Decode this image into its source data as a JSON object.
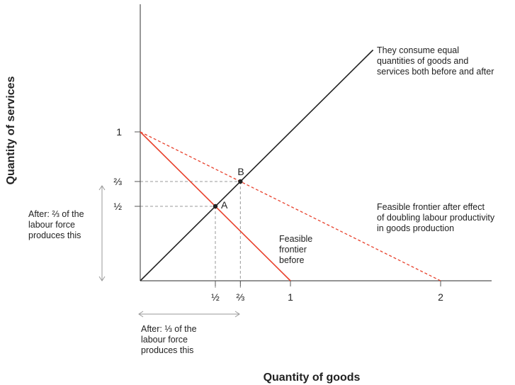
{
  "chart_data": {
    "type": "line",
    "xlabel": "Quantity of goods",
    "ylabel": "Quantity of services",
    "xlim": [
      0,
      2.35
    ],
    "ylim": [
      0,
      1.85
    ],
    "x_ticks": [
      {
        "value": 0.5,
        "label": "½"
      },
      {
        "value": 0.6667,
        "label": "⅔"
      },
      {
        "value": 1,
        "label": "1"
      },
      {
        "value": 2,
        "label": "2"
      }
    ],
    "y_ticks": [
      {
        "value": 0.5,
        "label": "½"
      },
      {
        "value": 0.6667,
        "label": "⅔"
      },
      {
        "value": 1,
        "label": "1"
      }
    ],
    "series": [
      {
        "x": [
          0,
          1.55
        ],
        "y": [
          0,
          1.55
        ],
        "color": "#222222",
        "style": "solid"
      },
      {
        "x": [
          0,
          1
        ],
        "y": [
          1,
          0
        ],
        "color": "#e8412c",
        "style": "solid"
      },
      {
        "x": [
          0,
          2
        ],
        "y": [
          1,
          0
        ],
        "color": "#e8412c",
        "style": "dashed"
      }
    ],
    "points": [
      {
        "label": "A",
        "x": 0.5,
        "y": 0.5
      },
      {
        "label": "B",
        "x": 0.6667,
        "y": 0.6667
      }
    ],
    "annotations": {
      "equal": [
        "They consume equal",
        "quantities of goods and",
        "services both before and after"
      ],
      "after_frontier": [
        "Feasible frontier after effect",
        "of doubling labour productivity",
        "in goods production"
      ],
      "before_frontier": [
        "Feasible",
        "frontier",
        "before"
      ],
      "services_share": [
        "After: ⅔ of the",
        "labour force",
        "produces this"
      ],
      "goods_share": [
        "After: ⅓ of the",
        "labour force",
        "produces this"
      ]
    }
  }
}
